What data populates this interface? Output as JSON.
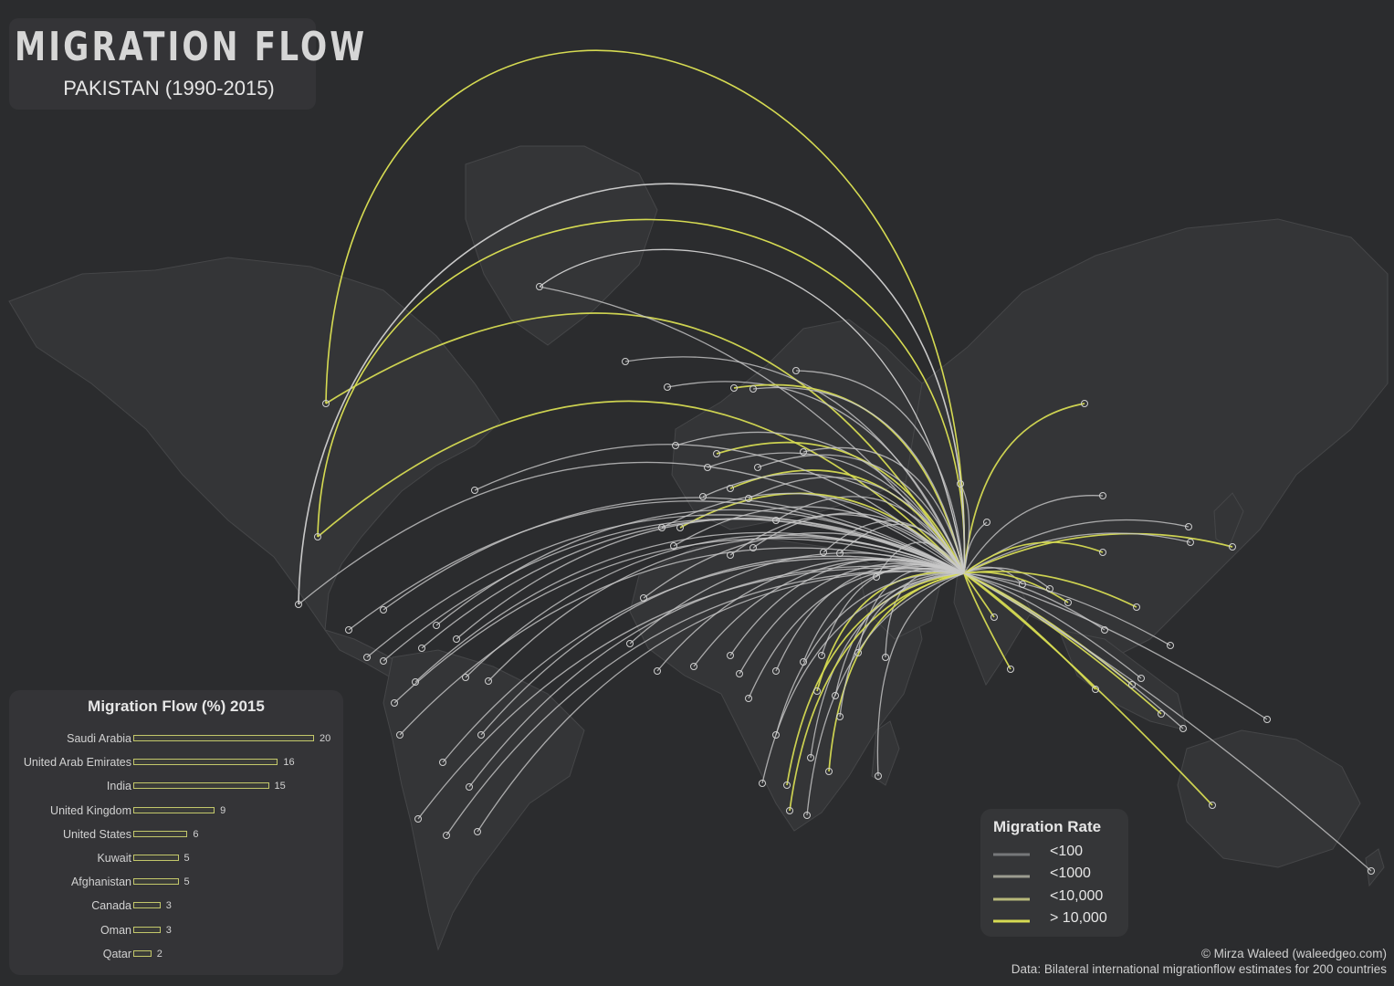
{
  "header": {
    "title": "MIGRATION FLOW",
    "subtitle": "PAKISTAN (1990-2015)"
  },
  "flow_chart": {
    "title": "Migration Flow (%) 2015",
    "unit": "%",
    "items": [
      {
        "country": "Saudi Arabia",
        "value": 20
      },
      {
        "country": "United Arab Emirates",
        "value": 16
      },
      {
        "country": "India",
        "value": 15
      },
      {
        "country": "United Kingdom",
        "value": 9
      },
      {
        "country": "United States",
        "value": 6
      },
      {
        "country": "Kuwait",
        "value": 5
      },
      {
        "country": "Afghanistan",
        "value": 5
      },
      {
        "country": "Canada",
        "value": 3
      },
      {
        "country": "Oman",
        "value": 3
      },
      {
        "country": "Qatar",
        "value": 2
      }
    ],
    "bar_color": "#c3c76a"
  },
  "legend": {
    "title": "Migration Rate",
    "items": [
      {
        "label": "<100",
        "color": "#76787a"
      },
      {
        "label": "<1000",
        "color": "#9c9c90"
      },
      {
        "label": "<10,000",
        "color": "#b8b97a"
      },
      {
        "label": "> 10,000",
        "color": "#d6db52"
      }
    ]
  },
  "credits": {
    "author": "© Mirza Waleed (waleedgeo.com)",
    "source": "Data: Bilateral international migrationflow estimates for 200 countries"
  },
  "colors": {
    "background": "#2b2c2e",
    "land": "#343537",
    "border": "#4a4b4d",
    "flow_light": "#c9c9c9",
    "flow_strong": "#d6db52",
    "origin_country": "Pakistan"
  }
}
